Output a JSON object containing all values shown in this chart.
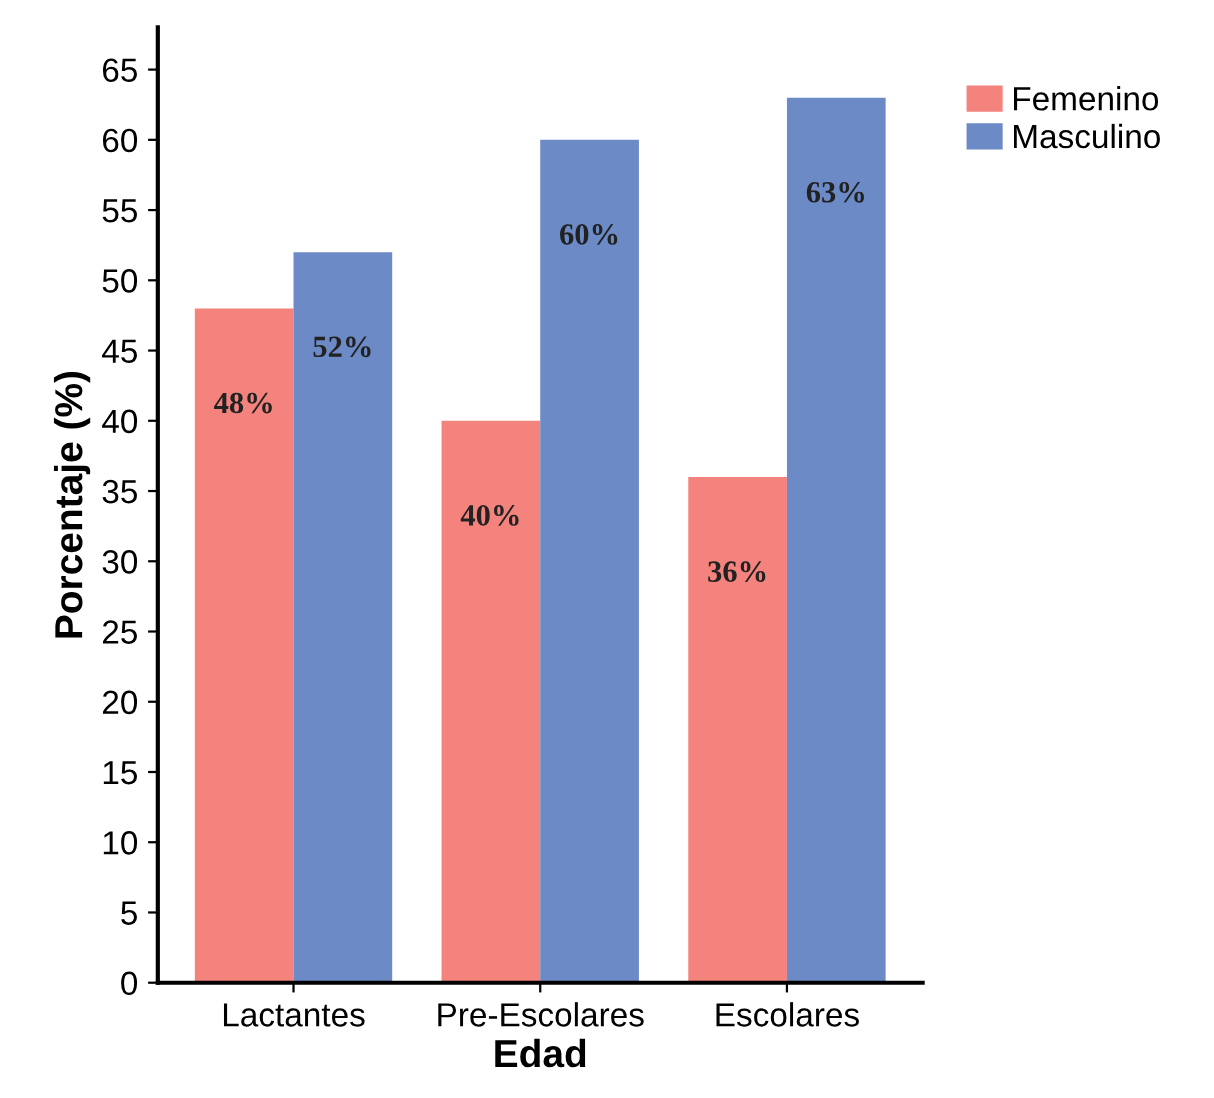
{
  "chart_data": {
    "type": "bar",
    "xlabel": "Edad",
    "ylabel": "Porcentaje (%)",
    "categories": [
      "Lactantes",
      "Pre-Escolares",
      "Escolares"
    ],
    "series": [
      {
        "name": "Femenino",
        "color": "#f4837d",
        "values": [
          48,
          40,
          36
        ],
        "value_labels": [
          "48%",
          "40%",
          "36%"
        ]
      },
      {
        "name": "Masculino",
        "color": "#6b8ac6",
        "values": [
          52,
          60,
          63
        ],
        "value_labels": [
          "52%",
          "60%",
          "63%"
        ]
      }
    ],
    "ylim": [
      0,
      68
    ],
    "yticks": [
      0,
      5,
      10,
      15,
      20,
      25,
      30,
      35,
      40,
      45,
      50,
      55,
      60,
      65
    ],
    "grid": false,
    "legend": "top right"
  }
}
